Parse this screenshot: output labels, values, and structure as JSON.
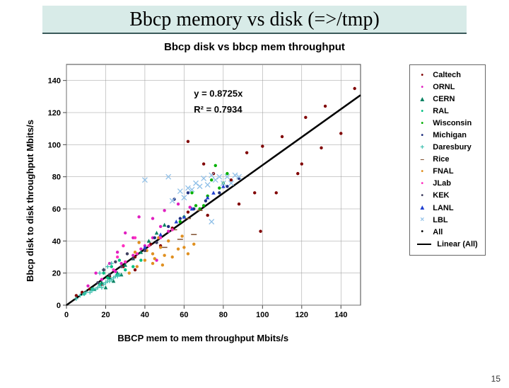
{
  "slide": {
    "title": "Bbcp memory vs disk (=>/tmp)"
  },
  "chart": {
    "type": "scatter",
    "title": "Bbcp disk vs bbcp mem throughput",
    "xlabel": "BBCP mem to mem throughput Mbits/s",
    "ylabel": "Bbcp disk to disk throughput Mbits/s",
    "xlim": [
      0,
      150
    ],
    "ylim": [
      0,
      150
    ],
    "xtick_step": 20,
    "ytick_step": 20,
    "background": "#ffffff",
    "grid_color": "#999999",
    "axis_color": "#444444",
    "regression": {
      "slope": 0.8725,
      "r2": 0.7934,
      "label1": "y = 0.8725x",
      "label2": "R² = 0.7934",
      "color": "#000000"
    },
    "series": [
      {
        "name": "Caltech",
        "color": "#800000",
        "marker": "dot",
        "points": [
          [
            5,
            6
          ],
          [
            8,
            8
          ],
          [
            12,
            10
          ],
          [
            18,
            13
          ],
          [
            22,
            18
          ],
          [
            29,
            24
          ],
          [
            35,
            30
          ],
          [
            43,
            38
          ],
          [
            54,
            48
          ],
          [
            62,
            58
          ],
          [
            70,
            88
          ],
          [
            75,
            82
          ],
          [
            84,
            78
          ],
          [
            92,
            95
          ],
          [
            96,
            70
          ],
          [
            99,
            46
          ],
          [
            100,
            99
          ],
          [
            110,
            105
          ],
          [
            120,
            88
          ],
          [
            122,
            117
          ],
          [
            132,
            124
          ],
          [
            140,
            107
          ],
          [
            147,
            135
          ],
          [
            62,
            102
          ],
          [
            72,
            56
          ],
          [
            88,
            63
          ],
          [
            35,
            22
          ],
          [
            48,
            37
          ],
          [
            130,
            98
          ],
          [
            107,
            70
          ],
          [
            118,
            82
          ]
        ]
      },
      {
        "name": "ORNL",
        "color": "#e020c0",
        "marker": "dot",
        "points": [
          [
            11,
            12
          ],
          [
            18,
            16
          ],
          [
            25,
            21
          ],
          [
            28,
            26
          ],
          [
            34,
            31
          ],
          [
            40,
            37
          ],
          [
            44,
            42
          ],
          [
            48,
            49
          ],
          [
            52,
            46
          ],
          [
            34,
            42
          ],
          [
            38,
            35
          ],
          [
            44,
            54
          ],
          [
            50,
            59
          ],
          [
            46,
            28
          ],
          [
            22,
            26
          ],
          [
            15,
            20
          ],
          [
            30,
            45
          ],
          [
            57,
            63
          ],
          [
            63,
            61
          ],
          [
            37,
            55
          ],
          [
            26,
            33
          ]
        ]
      },
      {
        "name": "CERN",
        "color": "#008060",
        "marker": "triangle",
        "points": [
          [
            14,
            10
          ],
          [
            18,
            14
          ],
          [
            22,
            17
          ],
          [
            26,
            20
          ],
          [
            30,
            25
          ],
          [
            34,
            29
          ],
          [
            38,
            33
          ],
          [
            42,
            40
          ],
          [
            46,
            45
          ],
          [
            50,
            50
          ],
          [
            20,
            11
          ],
          [
            24,
            15
          ],
          [
            28,
            19
          ]
        ]
      },
      {
        "name": "RAL",
        "color": "#00c080",
        "marker": "dot",
        "points": [
          [
            9,
            7
          ],
          [
            13,
            10
          ],
          [
            17,
            13
          ],
          [
            21,
            17
          ],
          [
            26,
            19
          ],
          [
            30,
            22
          ],
          [
            34,
            24
          ],
          [
            38,
            28
          ],
          [
            19,
            20
          ],
          [
            23,
            24
          ],
          [
            27,
            28
          ]
        ]
      },
      {
        "name": "Wisconsin",
        "color": "#00b000",
        "marker": "dot",
        "points": [
          [
            60,
            55
          ],
          [
            66,
            62
          ],
          [
            72,
            68
          ],
          [
            78,
            73
          ],
          [
            80,
            76
          ],
          [
            74,
            78
          ],
          [
            68,
            60
          ],
          [
            64,
            70
          ],
          [
            82,
            82
          ],
          [
            76,
            87
          ],
          [
            70,
            62
          ],
          [
            58,
            52
          ]
        ]
      },
      {
        "name": "Michigan",
        "color": "#203080",
        "marker": "dot",
        "points": [
          [
            45,
            42
          ],
          [
            52,
            49
          ],
          [
            58,
            54
          ],
          [
            65,
            60
          ],
          [
            71,
            65
          ],
          [
            78,
            70
          ],
          [
            82,
            74
          ],
          [
            88,
            79
          ],
          [
            55,
            66
          ],
          [
            62,
            70
          ]
        ]
      },
      {
        "name": "Daresbury",
        "color": "#40c0b0",
        "marker": "plus",
        "points": [
          [
            5,
            4
          ],
          [
            7,
            6
          ],
          [
            9,
            7
          ],
          [
            10,
            8
          ],
          [
            12,
            8
          ],
          [
            13,
            9
          ],
          [
            14,
            10
          ],
          [
            15,
            10
          ],
          [
            16,
            11
          ],
          [
            17,
            12
          ],
          [
            18,
            11
          ],
          [
            19,
            13
          ],
          [
            20,
            14
          ],
          [
            21,
            15
          ],
          [
            22,
            15
          ],
          [
            23,
            16
          ],
          [
            24,
            17
          ],
          [
            25,
            18
          ],
          [
            26,
            18
          ],
          [
            27,
            19
          ],
          [
            17,
            20
          ],
          [
            19,
            22
          ],
          [
            21,
            24
          ],
          [
            23,
            26
          ]
        ]
      },
      {
        "name": "Rice",
        "color": "#805030",
        "marker": "dash",
        "points": [
          [
            50,
            36
          ],
          [
            55,
            47
          ],
          [
            58,
            41
          ],
          [
            62,
            54
          ],
          [
            65,
            44
          ],
          [
            68,
            59
          ]
        ]
      },
      {
        "name": "FNAL",
        "color": "#e09020",
        "marker": "dot",
        "points": [
          [
            32,
            20
          ],
          [
            36,
            24
          ],
          [
            40,
            28
          ],
          [
            44,
            32
          ],
          [
            48,
            36
          ],
          [
            52,
            40
          ],
          [
            37,
            39
          ],
          [
            41,
            34
          ],
          [
            45,
            29
          ],
          [
            50,
            31
          ],
          [
            35,
            33
          ],
          [
            60,
            36
          ],
          [
            65,
            38
          ],
          [
            54,
            30
          ],
          [
            59,
            43
          ],
          [
            47,
            42
          ],
          [
            57,
            35
          ],
          [
            62,
            32
          ],
          [
            44,
            26
          ],
          [
            49,
            25
          ]
        ]
      },
      {
        "name": "JLab",
        "color": "#ff30c0",
        "marker": "dot",
        "points": [
          [
            24,
            22
          ],
          [
            30,
            27
          ],
          [
            36,
            32
          ],
          [
            42,
            37
          ],
          [
            48,
            42
          ],
          [
            54,
            47
          ],
          [
            29,
            37
          ],
          [
            35,
            42
          ],
          [
            26,
            30
          ]
        ]
      },
      {
        "name": "KEK",
        "color": "#404060",
        "marker": "dot",
        "points": [
          [
            16,
            14
          ],
          [
            22,
            19
          ],
          [
            28,
            24
          ],
          [
            34,
            29
          ],
          [
            40,
            34
          ],
          [
            46,
            39
          ],
          [
            19,
            22
          ],
          [
            25,
            27
          ],
          [
            31,
            32
          ]
        ]
      },
      {
        "name": "LANL",
        "color": "#2040d0",
        "marker": "triangle",
        "points": [
          [
            40,
            36
          ],
          [
            48,
            44
          ],
          [
            56,
            52
          ],
          [
            64,
            60
          ],
          [
            72,
            67
          ],
          [
            80,
            74
          ],
          [
            75,
            70
          ],
          [
            60,
            55
          ]
        ]
      },
      {
        "name": "LBL",
        "color": "#90c0e8",
        "marker": "x",
        "points": [
          [
            54,
            65
          ],
          [
            58,
            71
          ],
          [
            62,
            73
          ],
          [
            66,
            76
          ],
          [
            70,
            79
          ],
          [
            74,
            81
          ],
          [
            78,
            80
          ],
          [
            82,
            80
          ],
          [
            86,
            81
          ],
          [
            72,
            75
          ],
          [
            60,
            67
          ],
          [
            64,
            72
          ],
          [
            68,
            74
          ],
          [
            76,
            78
          ],
          [
            80,
            76
          ],
          [
            84,
            76
          ],
          [
            88,
            80
          ],
          [
            52,
            80
          ],
          [
            40,
            78
          ],
          [
            74,
            52
          ]
        ]
      },
      {
        "name": "All",
        "color": "#000000",
        "marker": "dot",
        "points": []
      }
    ],
    "linear_fit_name": "Linear (All)"
  },
  "page_number": "15"
}
